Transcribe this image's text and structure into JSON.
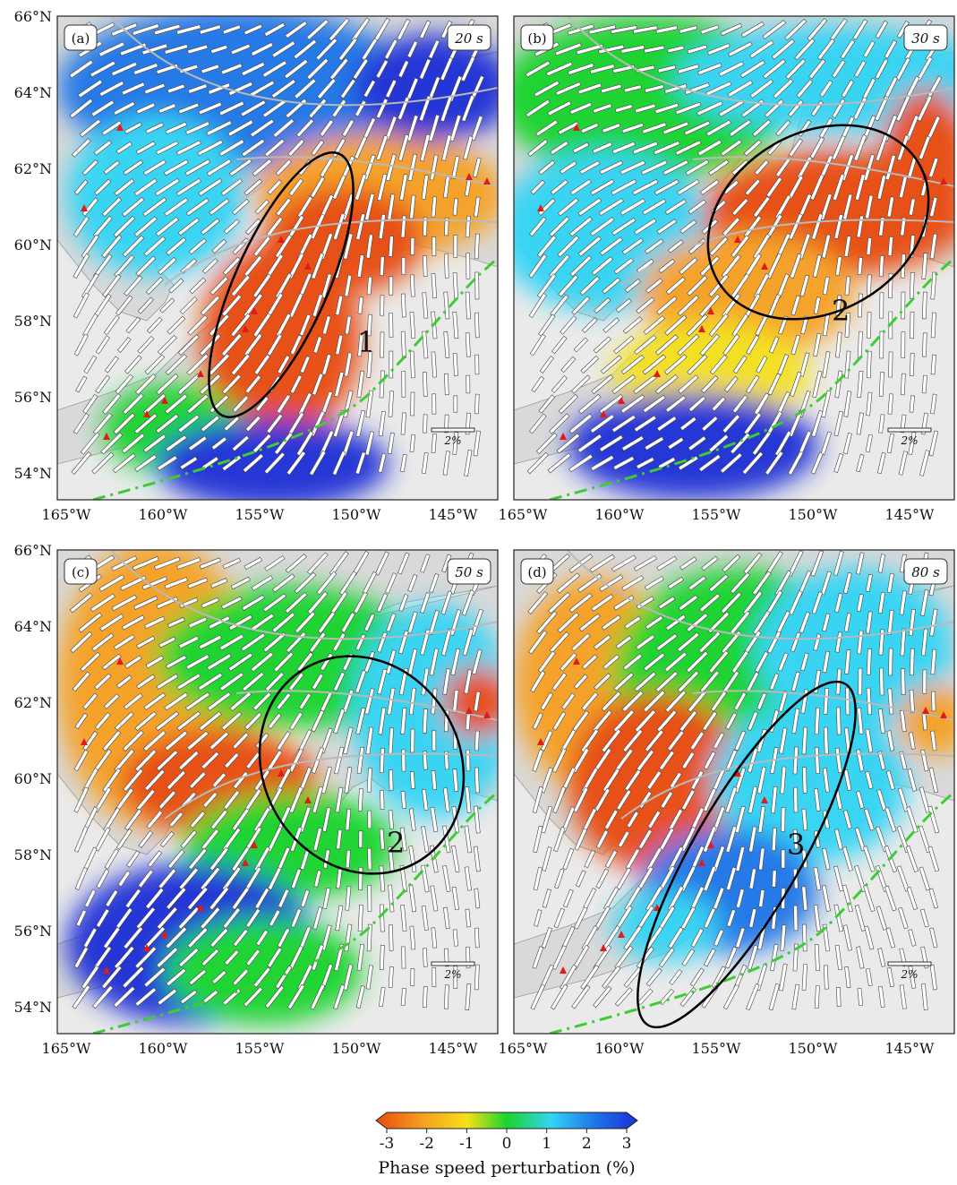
{
  "panels": [
    {
      "id": "a",
      "label": "(a)",
      "period": "20 s",
      "anomaly_label": "1"
    },
    {
      "id": "b",
      "label": "(b)",
      "period": "30 s",
      "anomaly_label": "2"
    },
    {
      "id": "c",
      "label": "(c)",
      "period": "50 s",
      "anomaly_label": "2"
    },
    {
      "id": "d",
      "label": "(d)",
      "period": "80 s",
      "anomaly_label": "3"
    }
  ],
  "axes": {
    "lat_labels": [
      "66°N",
      "64°N",
      "62°N",
      "60°N",
      "58°N",
      "56°N",
      "54°N"
    ],
    "lon_labels": [
      "165°W",
      "160°W",
      "155°W",
      "150°W",
      "145°W"
    ]
  },
  "scale_bar_label": "2%",
  "colorbar": {
    "ticks": [
      "-3",
      "-2",
      "-1",
      "0",
      "1",
      "2",
      "3"
    ],
    "title": "Phase speed perturbation (%)",
    "colors": [
      "#e84a0c",
      "#f7a020",
      "#f5e11a",
      "#19d42b",
      "#33d4f5",
      "#1e74e8",
      "#1a2fd6"
    ]
  },
  "colors": {
    "land": "#d9d9d9",
    "ocean": "#eaeaea",
    "trench": "#3dcc32",
    "volcano": "#e21a1a",
    "fault": "#b9b9b9"
  }
}
